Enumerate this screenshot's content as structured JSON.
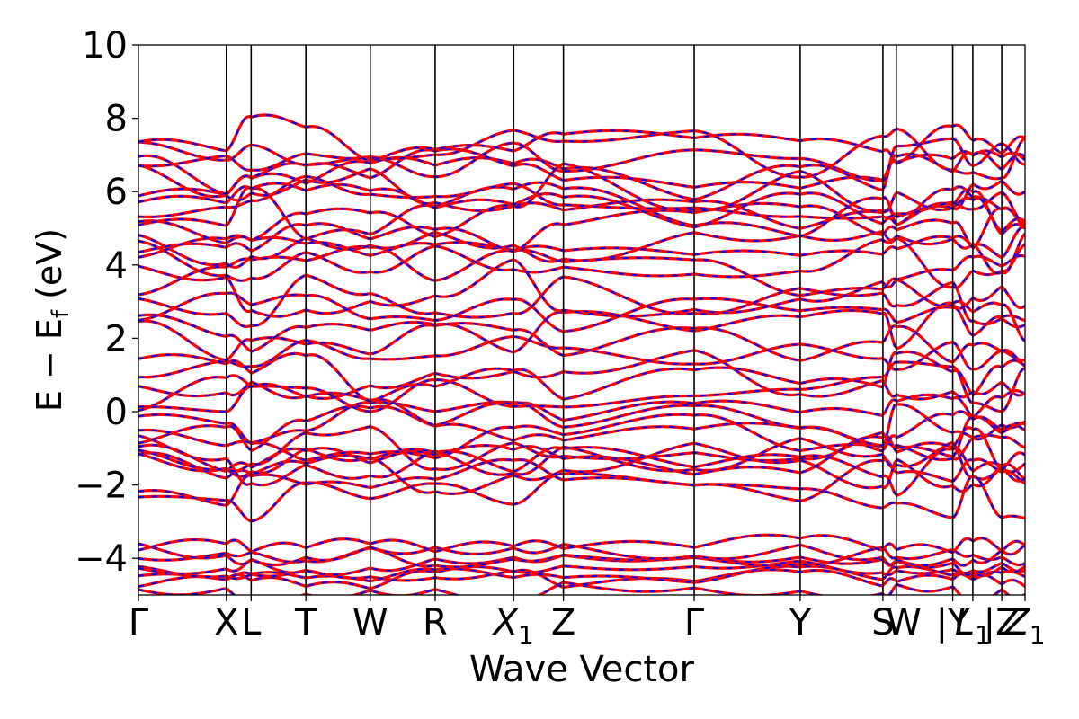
{
  "chart_data": {
    "type": "line",
    "title": "",
    "xlabel": "Wave Vector",
    "ylabel": "E − E_f (eV)",
    "ylabel_main": "E − E",
    "ylabel_sub": "f",
    "ylabel_unit": " (eV)",
    "ylim": [
      -5,
      10
    ],
    "yticks": [
      -4,
      -2,
      0,
      2,
      4,
      6,
      8,
      10
    ],
    "ytick_labels": [
      "−4",
      "−2",
      "0",
      "2",
      "4",
      "6",
      "8",
      "10"
    ],
    "xlim": [
      0,
      3.58
    ],
    "high_symmetry_points": [
      {
        "label": "Γ",
        "sub": "",
        "x": 0.0
      },
      {
        "label": "X",
        "sub": "",
        "x": 0.355
      },
      {
        "label": "L",
        "sub": "",
        "x": 0.455
      },
      {
        "label": "T",
        "sub": "",
        "x": 0.676
      },
      {
        "label": "W",
        "sub": "",
        "x": 0.936
      },
      {
        "label": "R",
        "sub": "",
        "x": 1.198
      },
      {
        "label": "X",
        "sub": "1",
        "x": 1.515
      },
      {
        "label": "Z",
        "sub": "",
        "x": 1.716
      },
      {
        "label": "Γ",
        "sub": "",
        "x": 2.244
      },
      {
        "label": "Y",
        "sub": "",
        "x": 2.672
      },
      {
        "label": "S",
        "sub": "",
        "x": 3.006
      },
      {
        "label": "W",
        "sub": "",
        "x": 3.06
      },
      {
        "label": "|Y",
        "sub": "",
        "x": 3.288
      },
      {
        "label": "L",
        "sub": "1",
        "x": 3.369
      },
      {
        "label": "|Z",
        "sub": "",
        "x": 3.486
      },
      {
        "label": "Z",
        "sub": "1",
        "x": 3.58
      }
    ],
    "label_positions": [
      0.0,
      0.355,
      0.455,
      0.676,
      0.936,
      1.198,
      1.515,
      1.716,
      2.244,
      2.672,
      3.006,
      3.09,
      3.288,
      3.369,
      3.486,
      3.58
    ],
    "series": [
      {
        "color": "#ff0000",
        "style": "solid"
      },
      {
        "color": "#0000ff",
        "style": "dashed"
      }
    ],
    "band_energies_at_gamma": [
      -4.85,
      -4.6,
      -4.45,
      -4.3,
      -4.15,
      -3.95,
      -3.8,
      -3.6,
      -2.3,
      -1.9,
      -1.7,
      -1.55,
      -1.3,
      -1.05,
      -0.9,
      -0.75,
      -0.55,
      -0.35,
      0.25,
      0.7,
      0.95,
      1.05,
      1.5,
      1.95,
      2.3,
      2.65,
      3.05,
      3.45,
      3.85,
      4.1,
      4.45,
      4.75,
      4.95,
      5.2,
      5.4,
      5.6,
      5.85,
      6.1,
      6.35,
      6.6,
      6.85,
      7.05,
      7.4
    ]
  }
}
